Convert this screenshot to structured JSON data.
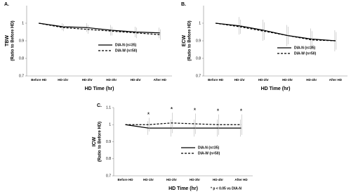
{
  "chart_data": [
    {
      "type": "line",
      "panel_label": "A.",
      "ylabel": "TBW",
      "ylabel_unit": "(Ratio to Before HD)",
      "xlabel": "HD Time (hr)",
      "categories": [
        "Before HD",
        "HD-1hr",
        "HD-2hr",
        "HD-3hr",
        "HD-4hr",
        "After HD"
      ],
      "ylim": [
        0.7,
        1.1
      ],
      "yticks": [
        0.7,
        0.8,
        0.9,
        1
      ],
      "series": [
        {
          "name": "DIA-N (n=35)",
          "color": "#000000",
          "dash": "solid",
          "values": [
            1,
            0.98,
            0.975,
            0.96,
            0.95,
            0.945
          ],
          "errors": [
            0,
            0.02,
            0.025,
            0.03,
            0.03,
            0.03
          ]
        },
        {
          "name": "DIA-W (n=50)",
          "color": "#000000",
          "dash": "dashed",
          "values": [
            1,
            0.975,
            0.965,
            0.955,
            0.945,
            0.935
          ],
          "errors": [
            0,
            0.02,
            0.025,
            0.025,
            0.03,
            0.03
          ]
        }
      ]
    },
    {
      "type": "line",
      "panel_label": "B.",
      "ylabel": "ECW",
      "ylabel_unit": "(Ratio to Before HD)",
      "xlabel": "HD Time (hr)",
      "categories": [
        "Before HD",
        "HD-1hr",
        "HD-2hr",
        "HD-3hr",
        "HD-4hr",
        "After HD"
      ],
      "ylim": [
        0.7,
        1.1
      ],
      "yticks": [
        0.7,
        0.8,
        0.9,
        1
      ],
      "series": [
        {
          "name": "DIA-N (n=35)",
          "color": "#000000",
          "dash": "solid",
          "values": [
            1,
            0.985,
            0.96,
            0.93,
            0.91,
            0.9
          ],
          "errors": [
            0,
            0.05,
            0.06,
            0.06,
            0.06,
            0.06
          ]
        },
        {
          "name": "DIA-W (n=50)",
          "color": "#000000",
          "dash": "dashed",
          "values": [
            1,
            0.98,
            0.955,
            0.93,
            0.905,
            0.9
          ],
          "errors": [
            0,
            0.04,
            0.05,
            0.05,
            0.05,
            0.05
          ]
        }
      ]
    },
    {
      "type": "line",
      "panel_label": "C.",
      "ylabel": "ICW",
      "ylabel_unit": "(Ratio to Before HD)",
      "xlabel": "HD Time (hr)",
      "categories": [
        "Before HD",
        "HD-1hr",
        "HD-2hr",
        "HD-3hr",
        "HD-4hr",
        "After HD"
      ],
      "ylim": [
        0.7,
        1.1
      ],
      "yticks": [
        0.7,
        0.8,
        0.9,
        1,
        1.1
      ],
      "significance": [
        null,
        "*",
        "*",
        "*",
        "*",
        "*"
      ],
      "annotation": "* p < 0.05 vs DIA-N",
      "series": [
        {
          "name": "DIA-N (n=35)",
          "color": "#000000",
          "dash": "solid",
          "values": [
            1,
            0.98,
            0.98,
            0.98,
            0.98,
            0.98
          ],
          "errors": [
            0,
            0.04,
            0.05,
            0.05,
            0.05,
            0.05
          ]
        },
        {
          "name": "DIA-W (n=50)",
          "color": "#000000",
          "dash": "dashed",
          "values": [
            1,
            1,
            1.01,
            1.005,
            1,
            1
          ],
          "errors": [
            0,
            0.04,
            0.06,
            0.06,
            0.06,
            0.06
          ]
        }
      ]
    }
  ]
}
